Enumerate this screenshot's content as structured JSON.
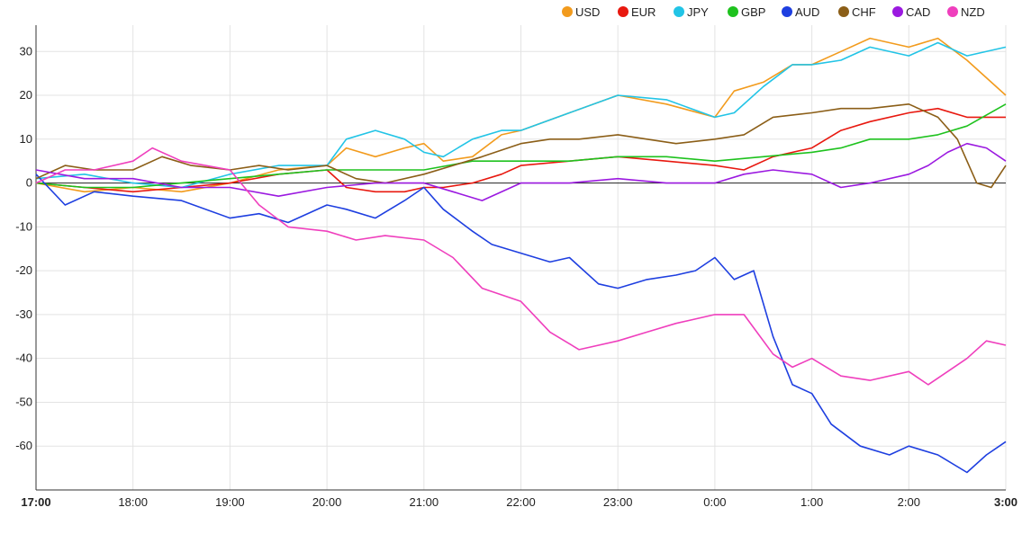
{
  "chart_data": {
    "type": "line",
    "title": "",
    "xlabel": "",
    "ylabel": "",
    "x_ticks": [
      "17:00",
      "18:00",
      "19:00",
      "20:00",
      "21:00",
      "22:00",
      "23:00",
      "0:00",
      "1:00",
      "2:00",
      "3:00"
    ],
    "y_ticks": [
      30,
      20,
      10,
      0,
      -10,
      -20,
      -30,
      -40,
      -50,
      -60
    ],
    "ylim": [
      -70,
      36
    ],
    "xlim": [
      0,
      10
    ],
    "grid": true,
    "legend_position": "top-right",
    "series": [
      {
        "name": "USD",
        "color": "#f29b1d",
        "values": [
          [
            0,
            0
          ],
          [
            0.5,
            -2
          ],
          [
            1,
            -1
          ],
          [
            1.5,
            -2
          ],
          [
            2,
            0
          ],
          [
            2.5,
            3
          ],
          [
            3,
            4
          ],
          [
            3.2,
            8
          ],
          [
            3.5,
            6
          ],
          [
            3.8,
            8
          ],
          [
            4,
            9
          ],
          [
            4.2,
            5
          ],
          [
            4.5,
            6
          ],
          [
            4.8,
            11
          ],
          [
            5,
            12
          ],
          [
            5.5,
            16
          ],
          [
            6,
            20
          ],
          [
            6.5,
            18
          ],
          [
            7,
            15
          ],
          [
            7.2,
            21
          ],
          [
            7.5,
            23
          ],
          [
            7.8,
            27
          ],
          [
            8,
            27
          ],
          [
            8.3,
            30
          ],
          [
            8.6,
            33
          ],
          [
            9,
            31
          ],
          [
            9.3,
            33
          ],
          [
            9.6,
            28
          ],
          [
            10,
            20
          ]
        ]
      },
      {
        "name": "EUR",
        "color": "#e8180f",
        "values": [
          [
            0,
            0
          ],
          [
            0.5,
            -1
          ],
          [
            1,
            -2
          ],
          [
            1.5,
            -1
          ],
          [
            2,
            0
          ],
          [
            2.5,
            2
          ],
          [
            3,
            3
          ],
          [
            3.2,
            -1
          ],
          [
            3.5,
            -2
          ],
          [
            3.8,
            -2
          ],
          [
            4,
            -1
          ],
          [
            4.2,
            -1
          ],
          [
            4.5,
            0
          ],
          [
            4.8,
            2
          ],
          [
            5,
            4
          ],
          [
            5.5,
            5
          ],
          [
            6,
            6
          ],
          [
            6.5,
            5
          ],
          [
            7,
            4
          ],
          [
            7.3,
            3
          ],
          [
            7.6,
            6
          ],
          [
            8,
            8
          ],
          [
            8.3,
            12
          ],
          [
            8.6,
            14
          ],
          [
            9,
            16
          ],
          [
            9.3,
            17
          ],
          [
            9.6,
            15
          ],
          [
            10,
            15
          ]
        ]
      },
      {
        "name": "JPY",
        "color": "#22c4e6",
        "values": [
          [
            0,
            1
          ],
          [
            0.5,
            2
          ],
          [
            1,
            0
          ],
          [
            1.5,
            -1
          ],
          [
            2,
            2
          ],
          [
            2.5,
            4
          ],
          [
            3,
            4
          ],
          [
            3.2,
            10
          ],
          [
            3.5,
            12
          ],
          [
            3.8,
            10
          ],
          [
            4,
            7
          ],
          [
            4.2,
            6
          ],
          [
            4.5,
            10
          ],
          [
            4.8,
            12
          ],
          [
            5,
            12
          ],
          [
            5.5,
            16
          ],
          [
            6,
            20
          ],
          [
            6.5,
            19
          ],
          [
            7,
            15
          ],
          [
            7.2,
            16
          ],
          [
            7.5,
            22
          ],
          [
            7.8,
            27
          ],
          [
            8,
            27
          ],
          [
            8.3,
            28
          ],
          [
            8.6,
            31
          ],
          [
            9,
            29
          ],
          [
            9.3,
            32
          ],
          [
            9.6,
            29
          ],
          [
            10,
            31
          ]
        ]
      },
      {
        "name": "GBP",
        "color": "#1ec21e",
        "values": [
          [
            0,
            0
          ],
          [
            0.5,
            -1
          ],
          [
            1,
            -1
          ],
          [
            1.5,
            0
          ],
          [
            2,
            1
          ],
          [
            2.5,
            2
          ],
          [
            3,
            3
          ],
          [
            3.5,
            3
          ],
          [
            4,
            3
          ],
          [
            4.5,
            5
          ],
          [
            5,
            5
          ],
          [
            5.5,
            5
          ],
          [
            6,
            6
          ],
          [
            6.5,
            6
          ],
          [
            7,
            5
          ],
          [
            7.5,
            6
          ],
          [
            8,
            7
          ],
          [
            8.3,
            8
          ],
          [
            8.6,
            10
          ],
          [
            9,
            10
          ],
          [
            9.3,
            11
          ],
          [
            9.6,
            13
          ],
          [
            10,
            18
          ]
        ]
      },
      {
        "name": "AUD",
        "color": "#1e3fe0",
        "values": [
          [
            0,
            2
          ],
          [
            0.3,
            -5
          ],
          [
            0.6,
            -2
          ],
          [
            1,
            -3
          ],
          [
            1.5,
            -4
          ],
          [
            2,
            -8
          ],
          [
            2.3,
            -7
          ],
          [
            2.6,
            -9
          ],
          [
            3,
            -5
          ],
          [
            3.2,
            -6
          ],
          [
            3.5,
            -8
          ],
          [
            3.8,
            -4
          ],
          [
            4,
            -1
          ],
          [
            4.2,
            -6
          ],
          [
            4.5,
            -11
          ],
          [
            4.7,
            -14
          ],
          [
            5,
            -16
          ],
          [
            5.3,
            -18
          ],
          [
            5.5,
            -17
          ],
          [
            5.8,
            -23
          ],
          [
            6,
            -24
          ],
          [
            6.3,
            -22
          ],
          [
            6.6,
            -21
          ],
          [
            6.8,
            -20
          ],
          [
            7,
            -17
          ],
          [
            7.2,
            -22
          ],
          [
            7.4,
            -20
          ],
          [
            7.6,
            -35
          ],
          [
            7.8,
            -46
          ],
          [
            8,
            -48
          ],
          [
            8.2,
            -55
          ],
          [
            8.5,
            -60
          ],
          [
            8.8,
            -62
          ],
          [
            9,
            -60
          ],
          [
            9.3,
            -62
          ],
          [
            9.6,
            -66
          ],
          [
            9.8,
            -62
          ],
          [
            10,
            -59
          ]
        ]
      },
      {
        "name": "CHF",
        "color": "#8b5e17",
        "values": [
          [
            0,
            1
          ],
          [
            0.3,
            4
          ],
          [
            0.6,
            3
          ],
          [
            1,
            3
          ],
          [
            1.3,
            6
          ],
          [
            1.6,
            4
          ],
          [
            2,
            3
          ],
          [
            2.3,
            4
          ],
          [
            2.6,
            3
          ],
          [
            3,
            4
          ],
          [
            3.3,
            1
          ],
          [
            3.6,
            0
          ],
          [
            4,
            2
          ],
          [
            4.3,
            4
          ],
          [
            4.6,
            6
          ],
          [
            5,
            9
          ],
          [
            5.3,
            10
          ],
          [
            5.6,
            10
          ],
          [
            6,
            11
          ],
          [
            6.3,
            10
          ],
          [
            6.6,
            9
          ],
          [
            7,
            10
          ],
          [
            7.3,
            11
          ],
          [
            7.6,
            15
          ],
          [
            8,
            16
          ],
          [
            8.3,
            17
          ],
          [
            8.6,
            17
          ],
          [
            9,
            18
          ],
          [
            9.3,
            15
          ],
          [
            9.5,
            10
          ],
          [
            9.7,
            0
          ],
          [
            9.85,
            -1
          ],
          [
            10,
            4
          ]
        ]
      },
      {
        "name": "CAD",
        "color": "#9b19e0",
        "values": [
          [
            0,
            3
          ],
          [
            0.5,
            1
          ],
          [
            1,
            1
          ],
          [
            1.5,
            -1
          ],
          [
            2,
            -1
          ],
          [
            2.5,
            -3
          ],
          [
            3,
            -1
          ],
          [
            3.5,
            0
          ],
          [
            4,
            0
          ],
          [
            4.3,
            -2
          ],
          [
            4.6,
            -4
          ],
          [
            5,
            0
          ],
          [
            5.5,
            0
          ],
          [
            6,
            1
          ],
          [
            6.5,
            0
          ],
          [
            7,
            0
          ],
          [
            7.3,
            2
          ],
          [
            7.6,
            3
          ],
          [
            8,
            2
          ],
          [
            8.3,
            -1
          ],
          [
            8.6,
            0
          ],
          [
            9,
            2
          ],
          [
            9.2,
            4
          ],
          [
            9.4,
            7
          ],
          [
            9.6,
            9
          ],
          [
            9.8,
            8
          ],
          [
            10,
            5
          ]
        ]
      },
      {
        "name": "NZD",
        "color": "#ef3fbd",
        "values": [
          [
            0,
            0
          ],
          [
            0.3,
            3
          ],
          [
            0.6,
            3
          ],
          [
            1,
            5
          ],
          [
            1.2,
            8
          ],
          [
            1.5,
            5
          ],
          [
            2,
            3
          ],
          [
            2.3,
            -5
          ],
          [
            2.6,
            -10
          ],
          [
            3,
            -11
          ],
          [
            3.3,
            -13
          ],
          [
            3.6,
            -12
          ],
          [
            4,
            -13
          ],
          [
            4.3,
            -17
          ],
          [
            4.6,
            -24
          ],
          [
            5,
            -27
          ],
          [
            5.3,
            -34
          ],
          [
            5.6,
            -38
          ],
          [
            6,
            -36
          ],
          [
            6.3,
            -34
          ],
          [
            6.6,
            -32
          ],
          [
            7,
            -30
          ],
          [
            7.3,
            -30
          ],
          [
            7.6,
            -39
          ],
          [
            7.8,
            -42
          ],
          [
            8,
            -40
          ],
          [
            8.3,
            -44
          ],
          [
            8.6,
            -45
          ],
          [
            9,
            -43
          ],
          [
            9.2,
            -46
          ],
          [
            9.4,
            -43
          ],
          [
            9.6,
            -40
          ],
          [
            9.8,
            -36
          ],
          [
            10,
            -37
          ]
        ]
      }
    ]
  }
}
